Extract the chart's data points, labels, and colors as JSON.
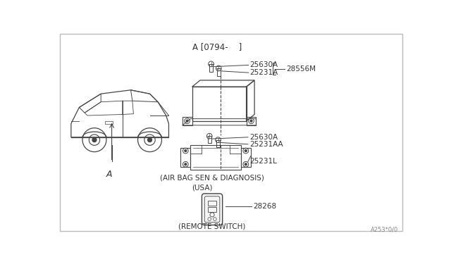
{
  "bg_color": "#ffffff",
  "border_color": "#bbbbbb",
  "line_color": "#444444",
  "text_color": "#333333",
  "title_text": "A [0794-    ]",
  "label_25630A": "25630A",
  "label_25231A": "25231A",
  "label_28556M": "28556M",
  "label_25630A_mid": "25630A",
  "label_25231AA": "25231AA",
  "label_25231L": "25231L",
  "label_28268": "28268",
  "caption_airbag": "(AIR BAG SEN & DIAGNOSIS)",
  "caption_usa": "(USA)",
  "caption_remote": "(REMOTE SWITCH)",
  "watermark": "A253*0/0",
  "figsize": [
    6.4,
    3.72
  ],
  "dpi": 100
}
